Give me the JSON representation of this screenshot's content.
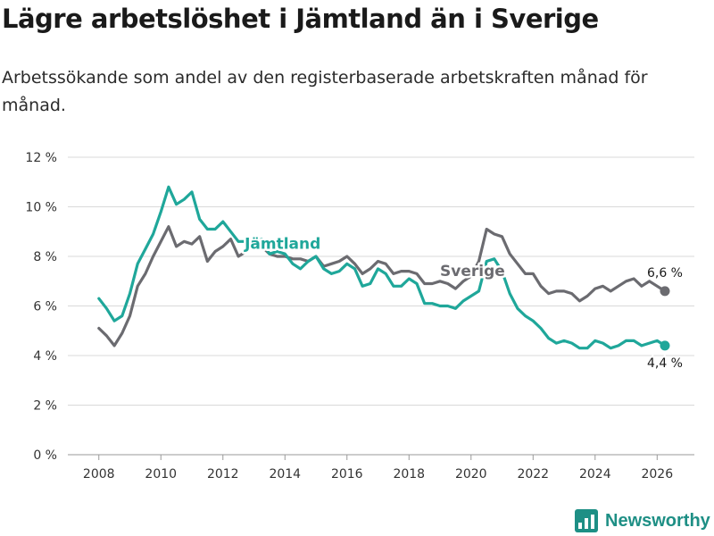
{
  "header": {
    "title": "Lägre arbetslöshet i Jämtland än i Sverige",
    "subtitle": "Arbetssökande som andel av den registerbaserade arbetskraften månad för månad."
  },
  "branding": {
    "name": "Newsworthy",
    "icon": "newsworthy-logo-icon"
  },
  "colors": {
    "jamtland": "#1fa79a",
    "sverige": "#6b6b70",
    "grid": "#d9d9d9",
    "axis": "#999999",
    "brand": "#1e8f85"
  },
  "chart_data": {
    "type": "line",
    "title": "Lägre arbetslöshet i Jämtland än i Sverige",
    "xlabel": "",
    "ylabel": "",
    "xlim": [
      2007,
      2027.2
    ],
    "ylim": [
      0,
      12
    ],
    "y_ticks": [
      0,
      2,
      4,
      6,
      8,
      10,
      12
    ],
    "y_tick_labels": [
      "0 %",
      "2 %",
      "4 %",
      "6 %",
      "8 %",
      "10 %",
      "12 %"
    ],
    "x_ticks": [
      2008,
      2010,
      2012,
      2014,
      2016,
      2018,
      2020,
      2022,
      2024,
      2026
    ],
    "x_tick_labels": [
      "2008",
      "2010",
      "2012",
      "2014",
      "2016",
      "2018",
      "2020",
      "2022",
      "2024",
      "2026"
    ],
    "grid": true,
    "series": [
      {
        "name": "Jämtland",
        "label": "Jämtland",
        "end_label": "4,4 %",
        "x": [
          2008.0,
          2008.25,
          2008.5,
          2008.75,
          2009.0,
          2009.25,
          2009.5,
          2009.75,
          2010.0,
          2010.25,
          2010.5,
          2010.75,
          2011.0,
          2011.25,
          2011.5,
          2011.75,
          2012.0,
          2012.25,
          2012.5,
          2012.75,
          2013.0,
          2013.25,
          2013.5,
          2013.75,
          2014.0,
          2014.25,
          2014.5,
          2014.75,
          2015.0,
          2015.25,
          2015.5,
          2015.75,
          2016.0,
          2016.25,
          2016.5,
          2016.75,
          2017.0,
          2017.25,
          2017.5,
          2017.75,
          2018.0,
          2018.25,
          2018.5,
          2018.75,
          2019.0,
          2019.25,
          2019.5,
          2019.75,
          2020.0,
          2020.25,
          2020.5,
          2020.75,
          2021.0,
          2021.25,
          2021.5,
          2021.75,
          2022.0,
          2022.25,
          2022.5,
          2022.75,
          2023.0,
          2023.25,
          2023.5,
          2023.75,
          2024.0,
          2024.25,
          2024.5,
          2024.75,
          2025.0,
          2025.25,
          2025.5,
          2025.75,
          2026.0,
          2026.25
        ],
        "values": [
          6.3,
          5.9,
          5.4,
          5.6,
          6.5,
          7.7,
          8.3,
          8.9,
          9.8,
          10.8,
          10.1,
          10.3,
          10.6,
          9.5,
          9.1,
          9.1,
          9.4,
          9.0,
          8.6,
          8.6,
          8.5,
          8.7,
          8.1,
          8.2,
          8.1,
          7.7,
          7.5,
          7.8,
          8.0,
          7.5,
          7.3,
          7.4,
          7.7,
          7.5,
          6.8,
          6.9,
          7.5,
          7.3,
          6.8,
          6.8,
          7.1,
          6.9,
          6.1,
          6.1,
          6.0,
          6.0,
          5.9,
          6.2,
          6.4,
          6.6,
          7.8,
          7.9,
          7.4,
          6.5,
          5.9,
          5.6,
          5.4,
          5.1,
          4.7,
          4.5,
          4.6,
          4.5,
          4.3,
          4.3,
          4.6,
          4.5,
          4.3,
          4.4,
          4.6,
          4.6,
          4.4,
          4.5,
          4.6,
          4.4
        ]
      },
      {
        "name": "Sverige",
        "label": "Sverige",
        "end_label": "6,6 %",
        "x": [
          2008.0,
          2008.25,
          2008.5,
          2008.75,
          2009.0,
          2009.25,
          2009.5,
          2009.75,
          2010.0,
          2010.25,
          2010.5,
          2010.75,
          2011.0,
          2011.25,
          2011.5,
          2011.75,
          2012.0,
          2012.25,
          2012.5,
          2012.75,
          2013.0,
          2013.25,
          2013.5,
          2013.75,
          2014.0,
          2014.25,
          2014.5,
          2014.75,
          2015.0,
          2015.25,
          2015.5,
          2015.75,
          2016.0,
          2016.25,
          2016.5,
          2016.75,
          2017.0,
          2017.25,
          2017.5,
          2017.75,
          2018.0,
          2018.25,
          2018.5,
          2018.75,
          2019.0,
          2019.25,
          2019.5,
          2019.75,
          2020.0,
          2020.25,
          2020.5,
          2020.75,
          2021.0,
          2021.25,
          2021.5,
          2021.75,
          2022.0,
          2022.25,
          2022.5,
          2022.75,
          2023.0,
          2023.25,
          2023.5,
          2023.75,
          2024.0,
          2024.25,
          2024.5,
          2024.75,
          2025.0,
          2025.25,
          2025.5,
          2025.75,
          2026.0,
          2026.25
        ],
        "values": [
          5.1,
          4.8,
          4.4,
          4.9,
          5.6,
          6.8,
          7.3,
          8.0,
          8.6,
          9.2,
          8.4,
          8.6,
          8.5,
          8.8,
          7.8,
          8.2,
          8.4,
          8.7,
          8.0,
          8.2,
          8.6,
          8.4,
          8.1,
          8.0,
          8.0,
          7.9,
          7.9,
          7.8,
          8.0,
          7.6,
          7.7,
          7.8,
          8.0,
          7.7,
          7.3,
          7.5,
          7.8,
          7.7,
          7.3,
          7.4,
          7.4,
          7.3,
          6.9,
          6.9,
          7.0,
          6.9,
          6.7,
          7.0,
          7.2,
          7.8,
          9.1,
          8.9,
          8.8,
          8.1,
          7.7,
          7.3,
          7.3,
          6.8,
          6.5,
          6.6,
          6.6,
          6.5,
          6.2,
          6.4,
          6.7,
          6.8,
          6.6,
          6.8,
          7.0,
          7.1,
          6.8,
          7.0,
          6.8,
          6.6
        ]
      }
    ]
  }
}
